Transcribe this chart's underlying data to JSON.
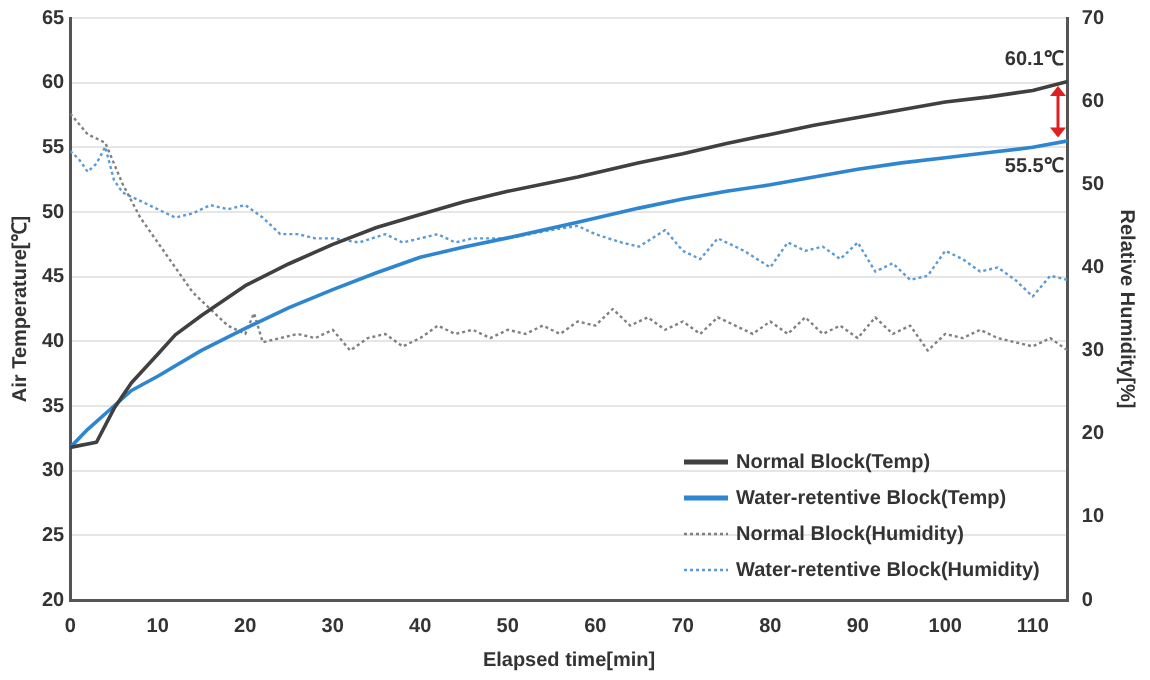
{
  "chart_data": {
    "type": "line",
    "xlabel": "Elapsed time[min]",
    "ylabel": "Air Temperature[℃]",
    "y2label": "Relative Humidity[%]",
    "xlim": [
      0,
      114
    ],
    "xticks": [
      0,
      10,
      20,
      30,
      40,
      50,
      60,
      70,
      80,
      90,
      100,
      110
    ],
    "ylim": [
      20,
      65
    ],
    "yticks": [
      20,
      25,
      30,
      35,
      40,
      45,
      50,
      55,
      60,
      65
    ],
    "y2lim": [
      0,
      70
    ],
    "y2ticks": [
      0,
      10,
      20,
      30,
      40,
      50,
      60,
      70
    ],
    "grid": "y",
    "legend": "bottom right",
    "marker": "none",
    "annotations": [
      {
        "text": "60.1℃",
        "x": 114,
        "y": 60.1
      },
      {
        "text": "55.5℃",
        "x": 114,
        "y": 55.5
      }
    ],
    "series": [
      {
        "name": "Normal Block(Temp)",
        "color": "#404040",
        "line_style": "solid",
        "x": [
          0,
          3,
          5,
          7,
          10,
          12,
          15,
          20,
          25,
          30,
          35,
          40,
          45,
          50,
          58,
          65,
          70,
          75,
          80,
          85,
          90,
          95,
          100,
          105,
          110,
          114
        ],
        "values": [
          31.8,
          32.2,
          34.8,
          36.8,
          39,
          40.5,
          42,
          44.3,
          46,
          47.5,
          48.8,
          49.8,
          50.8,
          51.6,
          52.7,
          53.8,
          54.5,
          55.3,
          56,
          56.7,
          57.3,
          57.9,
          58.5,
          58.9,
          59.4,
          60.1
        ]
      },
      {
        "name": "Water-retentive Block(Temp)",
        "color": "#2e86d0",
        "line_style": "solid",
        "x": [
          0,
          2,
          5,
          7,
          10,
          15,
          20,
          25,
          30,
          35,
          40,
          45,
          50,
          58,
          65,
          70,
          75,
          80,
          85,
          90,
          95,
          100,
          105,
          110,
          114
        ],
        "values": [
          31.8,
          33.2,
          35,
          36.2,
          37.3,
          39.3,
          41,
          42.6,
          44,
          45.3,
          46.5,
          47.3,
          48,
          49.2,
          50.3,
          51,
          51.6,
          52.1,
          52.7,
          53.3,
          53.8,
          54.2,
          54.6,
          55,
          55.5
        ]
      },
      {
        "name": "Normal Block(Humidity)",
        "color": "#808080",
        "line_style": "dotted",
        "axis": "y2",
        "x": [
          0,
          2,
          4,
          6,
          8,
          10,
          12,
          14,
          16,
          18,
          20,
          21,
          22,
          24,
          26,
          28,
          30,
          32,
          34,
          36,
          38,
          40,
          42,
          44,
          46,
          48,
          50,
          52,
          54,
          56,
          58,
          60,
          62,
          64,
          66,
          68,
          70,
          72,
          74,
          76,
          78,
          80,
          82,
          84,
          86,
          88,
          90,
          92,
          94,
          96,
          98,
          100,
          102,
          104,
          106,
          108,
          110,
          112,
          114
        ],
        "values": [
          58.5,
          56,
          55,
          50,
          46,
          43,
          40,
          37,
          35,
          33,
          32,
          34.5,
          31,
          31.5,
          32,
          31.5,
          32.5,
          30,
          31.5,
          32,
          30.5,
          31.5,
          33,
          32,
          32.5,
          31.5,
          32.5,
          32,
          33,
          32,
          33.5,
          33,
          35,
          33,
          34,
          32.5,
          33.5,
          32,
          34,
          33,
          32,
          33.5,
          32,
          34,
          32,
          33,
          31.5,
          34,
          32,
          33,
          30,
          32,
          31.5,
          32.5,
          31.5,
          31,
          30.5,
          31.5,
          30
        ]
      },
      {
        "name": "Water-retentive Block(Humidity)",
        "color": "#5b9bd5",
        "line_style": "dotted",
        "axis": "y2",
        "x": [
          0,
          1,
          2,
          3,
          4,
          5,
          6,
          8,
          10,
          12,
          14,
          16,
          18,
          20,
          22,
          24,
          26,
          28,
          30,
          33,
          36,
          38,
          40,
          42,
          44,
          46,
          50,
          55,
          58,
          60,
          63,
          65,
          68,
          70,
          72,
          74,
          77,
          80,
          82,
          84,
          86,
          88,
          90,
          92,
          94,
          96,
          98,
          100,
          102,
          104,
          106,
          108,
          110,
          112,
          114
        ],
        "values": [
          54,
          53,
          51.5,
          52.5,
          54.5,
          50.5,
          49,
          48,
          47,
          46,
          46.5,
          47.5,
          47,
          47.5,
          46,
          44,
          44,
          43.5,
          43.5,
          43,
          44,
          43,
          43.5,
          44,
          43,
          43.5,
          43.5,
          44.5,
          45,
          44,
          43,
          42.5,
          44.5,
          42,
          41,
          43.5,
          42,
          40,
          43,
          42,
          42.5,
          41,
          43,
          39.5,
          40.5,
          38.5,
          39,
          42,
          41,
          39.5,
          40,
          38.5,
          36.5,
          39,
          38.5
        ]
      }
    ]
  }
}
